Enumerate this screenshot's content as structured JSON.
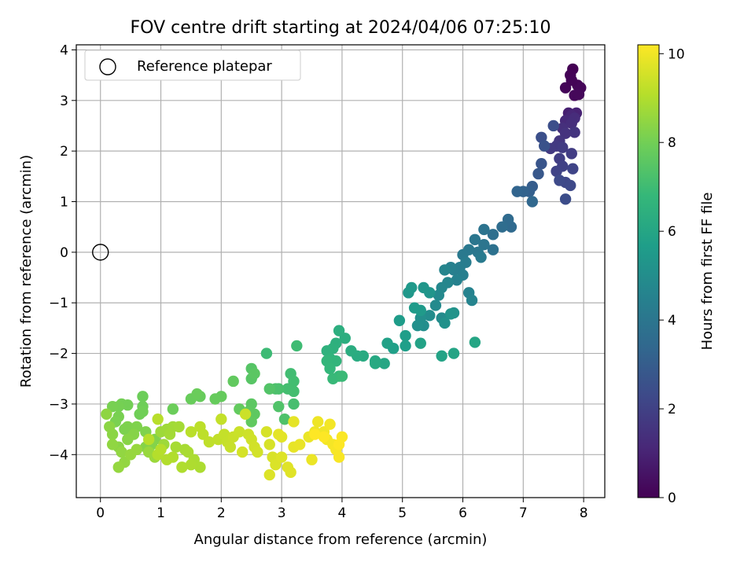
{
  "chart_data": {
    "type": "scatter",
    "title": "FOV centre drift starting at 2024/04/06 07:25:10",
    "xlabel": "Angular distance from reference (arcmin)",
    "ylabel": "Rotation from reference (arcmin)",
    "xlim": [
      -0.4,
      8.35
    ],
    "ylim": [
      -4.85,
      4.1
    ],
    "xticks": [
      0,
      1,
      2,
      3,
      4,
      5,
      6,
      7,
      8
    ],
    "yticks": [
      -4,
      -3,
      -2,
      -1,
      0,
      1,
      2,
      3,
      4
    ],
    "grid": true,
    "legend": {
      "position": "top-left",
      "entries": [
        "Reference platepar"
      ]
    },
    "reference_point": {
      "x": 0,
      "y": 0
    },
    "colorbar": {
      "label": "Hours from first FF file",
      "min": 0,
      "max": 10.2,
      "ticks": [
        0,
        2,
        4,
        6,
        8,
        10
      ],
      "colormap": "viridis"
    },
    "colormap_stops": [
      "#440154",
      "#482878",
      "#3e4989",
      "#31688e",
      "#26828e",
      "#1f9e89",
      "#35b779",
      "#6ece58",
      "#b5de2b",
      "#fde725"
    ],
    "marker_outline_color": "#000000",
    "points": [
      [
        7.82,
        3.62,
        0.0
      ],
      [
        7.78,
        3.5,
        0.05
      ],
      [
        7.9,
        3.3,
        0.1
      ],
      [
        7.7,
        3.25,
        0.12
      ],
      [
        7.95,
        3.25,
        0.15
      ],
      [
        7.85,
        3.1,
        0.18
      ],
      [
        7.92,
        3.12,
        0.2
      ],
      [
        7.8,
        3.4,
        0.08
      ],
      [
        7.75,
        2.75,
        0.9
      ],
      [
        7.88,
        2.75,
        1.0
      ],
      [
        7.8,
        2.7,
        1.1
      ],
      [
        7.7,
        2.6,
        1.2
      ],
      [
        7.85,
        2.65,
        1.3
      ],
      [
        7.8,
        2.55,
        1.35
      ],
      [
        7.65,
        2.45,
        1.4
      ],
      [
        7.7,
        2.35,
        1.5
      ],
      [
        7.85,
        2.37,
        1.55
      ],
      [
        7.6,
        2.2,
        1.6
      ],
      [
        7.55,
        2.1,
        1.7
      ],
      [
        7.45,
        2.05,
        1.75
      ],
      [
        7.65,
        2.07,
        1.8
      ],
      [
        7.8,
        1.95,
        1.85
      ],
      [
        7.6,
        1.85,
        1.9
      ],
      [
        7.65,
        1.7,
        2.0
      ],
      [
        7.55,
        1.6,
        2.05
      ],
      [
        7.82,
        1.65,
        2.1
      ],
      [
        7.7,
        1.38,
        2.2
      ],
      [
        7.78,
        1.32,
        2.25
      ],
      [
        7.6,
        1.42,
        2.3
      ],
      [
        7.7,
        1.05,
        2.4
      ],
      [
        7.5,
        2.5,
        2.45
      ],
      [
        7.3,
        2.27,
        2.5
      ],
      [
        7.35,
        2.1,
        2.6
      ],
      [
        7.3,
        1.75,
        2.7
      ],
      [
        7.25,
        1.55,
        2.8
      ],
      [
        7.15,
        1.3,
        3.0
      ],
      [
        7.1,
        1.2,
        3.1
      ],
      [
        7.0,
        1.2,
        3.2
      ],
      [
        6.9,
        1.2,
        3.3
      ],
      [
        7.15,
        1.0,
        3.4
      ],
      [
        6.8,
        0.5,
        3.5
      ],
      [
        6.75,
        0.65,
        3.55
      ],
      [
        6.65,
        0.5,
        3.6
      ],
      [
        6.5,
        0.35,
        3.7
      ],
      [
        6.5,
        0.05,
        3.8
      ],
      [
        6.35,
        0.45,
        3.9
      ],
      [
        6.35,
        0.15,
        3.95
      ],
      [
        6.2,
        0.25,
        4.0
      ],
      [
        6.25,
        0.0,
        4.05
      ],
      [
        6.1,
        0.05,
        4.1
      ],
      [
        6.0,
        -0.05,
        4.15
      ],
      [
        6.3,
        -0.1,
        4.2
      ],
      [
        6.05,
        -0.2,
        4.25
      ],
      [
        5.95,
        -0.3,
        4.3
      ],
      [
        5.85,
        -0.35,
        4.35
      ],
      [
        6.0,
        -0.45,
        4.4
      ],
      [
        5.8,
        -0.3,
        4.45
      ],
      [
        5.9,
        -0.55,
        4.5
      ],
      [
        6.1,
        -0.8,
        4.55
      ],
      [
        6.15,
        -0.95,
        4.6
      ],
      [
        5.7,
        -0.35,
        4.65
      ],
      [
        5.75,
        -0.6,
        4.7
      ],
      [
        5.65,
        -0.7,
        4.75
      ],
      [
        5.6,
        -0.85,
        4.8
      ],
      [
        5.55,
        -1.05,
        4.85
      ],
      [
        5.65,
        -1.3,
        4.9
      ],
      [
        5.45,
        -1.25,
        4.95
      ],
      [
        5.35,
        -1.45,
        5.0
      ],
      [
        5.3,
        -1.3,
        5.05
      ],
      [
        5.25,
        -1.45,
        5.1
      ],
      [
        5.7,
        -1.4,
        5.15
      ],
      [
        5.85,
        -1.2,
        5.2
      ],
      [
        5.8,
        -1.22,
        5.25
      ],
      [
        5.45,
        -0.8,
        5.3
      ],
      [
        5.35,
        -0.7,
        5.35
      ],
      [
        5.1,
        -0.8,
        5.4
      ],
      [
        5.15,
        -0.7,
        5.45
      ],
      [
        5.3,
        -1.15,
        5.5
      ],
      [
        5.2,
        -1.1,
        5.55
      ],
      [
        4.95,
        -1.35,
        5.6
      ],
      [
        5.05,
        -1.65,
        5.65
      ],
      [
        5.05,
        -1.85,
        5.7
      ],
      [
        4.85,
        -1.9,
        5.75
      ],
      [
        4.75,
        -1.8,
        5.8
      ],
      [
        5.3,
        -1.8,
        5.85
      ],
      [
        5.65,
        -2.05,
        5.9
      ],
      [
        5.85,
        -2.0,
        5.95
      ],
      [
        6.2,
        -1.78,
        6.0
      ],
      [
        4.7,
        -2.2,
        6.05
      ],
      [
        4.55,
        -2.15,
        6.1
      ],
      [
        4.55,
        -2.2,
        6.15
      ],
      [
        4.35,
        -2.05,
        6.2
      ],
      [
        4.25,
        -2.05,
        6.25
      ],
      [
        4.15,
        -1.95,
        6.3
      ],
      [
        4.05,
        -1.7,
        6.35
      ],
      [
        3.95,
        -1.55,
        6.4
      ],
      [
        3.9,
        -1.8,
        6.45
      ],
      [
        3.85,
        -1.9,
        6.5
      ],
      [
        3.75,
        -1.95,
        6.55
      ],
      [
        3.8,
        -2.1,
        6.6
      ],
      [
        3.9,
        -2.15,
        6.65
      ],
      [
        3.75,
        -2.15,
        6.7
      ],
      [
        3.8,
        -2.3,
        6.75
      ],
      [
        3.95,
        -2.45,
        6.8
      ],
      [
        3.85,
        -2.5,
        6.85
      ],
      [
        4.0,
        -2.45,
        6.9
      ],
      [
        2.75,
        -2.0,
        6.95
      ],
      [
        3.25,
        -1.85,
        7.0
      ],
      [
        3.15,
        -2.4,
        7.05
      ],
      [
        3.2,
        -2.55,
        7.08
      ],
      [
        3.2,
        -2.75,
        7.1
      ],
      [
        3.1,
        -2.7,
        7.12
      ],
      [
        3.2,
        -3.0,
        7.15
      ],
      [
        2.95,
        -2.7,
        7.2
      ],
      [
        2.9,
        -2.7,
        7.25
      ],
      [
        3.05,
        -3.3,
        7.3
      ],
      [
        2.95,
        -3.05,
        7.35
      ],
      [
        2.8,
        -2.7,
        7.4
      ],
      [
        2.5,
        -2.3,
        7.45
      ],
      [
        2.5,
        -2.5,
        7.5
      ],
      [
        2.55,
        -2.4,
        7.55
      ],
      [
        2.5,
        -3.0,
        7.6
      ],
      [
        2.55,
        -3.2,
        7.62
      ],
      [
        2.45,
        -3.15,
        7.65
      ],
      [
        2.5,
        -3.35,
        7.68
      ],
      [
        2.2,
        -2.55,
        7.7
      ],
      [
        2.3,
        -3.1,
        7.72
      ],
      [
        2.0,
        -2.85,
        7.75
      ],
      [
        1.9,
        -2.9,
        7.78
      ],
      [
        1.65,
        -2.85,
        7.8
      ],
      [
        1.5,
        -2.9,
        7.82
      ],
      [
        1.6,
        -2.8,
        7.85
      ],
      [
        1.2,
        -3.1,
        7.88
      ],
      [
        0.7,
        -2.85,
        7.9
      ],
      [
        0.7,
        -3.05,
        7.92
      ],
      [
        0.65,
        -3.2,
        7.95
      ],
      [
        0.7,
        -3.15,
        7.97
      ],
      [
        0.45,
        -3.02,
        8.0
      ],
      [
        0.35,
        -3.0,
        8.02
      ],
      [
        0.3,
        -3.05,
        8.05
      ],
      [
        0.2,
        -3.05,
        8.08
      ],
      [
        0.3,
        -3.25,
        8.1
      ],
      [
        0.25,
        -3.35,
        8.12
      ],
      [
        0.4,
        -3.5,
        8.15
      ],
      [
        0.45,
        -3.45,
        8.18
      ],
      [
        0.6,
        -3.45,
        8.2
      ],
      [
        0.75,
        -3.55,
        8.22
      ],
      [
        0.9,
        -3.7,
        8.25
      ],
      [
        0.85,
        -3.8,
        8.28
      ],
      [
        0.75,
        -3.85,
        8.3
      ],
      [
        0.55,
        -3.6,
        8.32
      ],
      [
        0.45,
        -3.7,
        8.35
      ],
      [
        0.3,
        -3.85,
        8.38
      ],
      [
        0.2,
        -3.6,
        8.4
      ],
      [
        0.15,
        -3.45,
        8.42
      ],
      [
        0.1,
        -3.2,
        8.45
      ],
      [
        0.2,
        -3.8,
        8.48
      ],
      [
        0.35,
        -3.95,
        8.5
      ],
      [
        0.4,
        -4.15,
        8.52
      ],
      [
        0.3,
        -4.25,
        8.55
      ],
      [
        0.5,
        -4.0,
        8.58
      ],
      [
        0.6,
        -3.9,
        8.6
      ],
      [
        0.8,
        -3.95,
        8.62
      ],
      [
        0.9,
        -4.05,
        8.65
      ],
      [
        1.0,
        -3.55,
        8.68
      ],
      [
        1.05,
        -3.8,
        8.7
      ],
      [
        1.1,
        -3.5,
        8.72
      ],
      [
        1.2,
        -3.45,
        8.75
      ],
      [
        1.15,
        -3.6,
        8.78
      ],
      [
        1.3,
        -3.45,
        8.8
      ],
      [
        1.25,
        -3.85,
        8.82
      ],
      [
        1.4,
        -3.9,
        8.85
      ],
      [
        1.45,
        -3.95,
        8.88
      ],
      [
        1.55,
        -4.1,
        8.9
      ],
      [
        1.65,
        -4.25,
        8.92
      ],
      [
        1.5,
        -4.2,
        8.95
      ],
      [
        1.35,
        -4.25,
        8.97
      ],
      [
        1.2,
        -4.05,
        9.0
      ],
      [
        1.1,
        -4.1,
        9.02
      ],
      [
        0.95,
        -4.0,
        9.05
      ],
      [
        1.0,
        -3.9,
        9.08
      ],
      [
        0.8,
        -3.7,
        9.1
      ],
      [
        0.95,
        -3.3,
        9.12
      ],
      [
        1.5,
        -3.55,
        9.15
      ],
      [
        1.65,
        -3.45,
        9.18
      ],
      [
        1.7,
        -3.6,
        9.2
      ],
      [
        1.8,
        -3.75,
        9.22
      ],
      [
        1.95,
        -3.7,
        9.25
      ],
      [
        2.0,
        -3.3,
        9.28
      ],
      [
        2.05,
        -3.6,
        9.3
      ],
      [
        2.1,
        -3.75,
        9.32
      ],
      [
        2.15,
        -3.85,
        9.35
      ],
      [
        2.2,
        -3.65,
        9.38
      ],
      [
        2.3,
        -3.55,
        9.4
      ],
      [
        2.4,
        -3.2,
        9.42
      ],
      [
        2.45,
        -3.6,
        9.45
      ],
      [
        2.5,
        -3.7,
        9.48
      ],
      [
        2.55,
        -3.85,
        9.5
      ],
      [
        2.6,
        -3.95,
        9.52
      ],
      [
        2.35,
        -3.95,
        9.55
      ],
      [
        2.75,
        -3.55,
        9.58
      ],
      [
        2.8,
        -3.8,
        9.6
      ],
      [
        2.85,
        -4.05,
        9.62
      ],
      [
        2.9,
        -4.2,
        9.65
      ],
      [
        2.8,
        -4.4,
        9.68
      ],
      [
        3.0,
        -4.05,
        9.7
      ],
      [
        3.1,
        -4.25,
        9.72
      ],
      [
        3.15,
        -4.35,
        9.75
      ],
      [
        3.0,
        -3.65,
        9.78
      ],
      [
        2.95,
        -3.6,
        9.8
      ],
      [
        3.2,
        -3.35,
        9.82
      ],
      [
        3.2,
        -3.85,
        9.85
      ],
      [
        3.3,
        -3.8,
        9.88
      ],
      [
        3.45,
        -3.65,
        9.9
      ],
      [
        3.5,
        -4.1,
        9.92
      ],
      [
        3.55,
        -3.55,
        9.95
      ],
      [
        3.6,
        -3.35,
        9.97
      ],
      [
        3.7,
        -3.55,
        10.0
      ],
      [
        3.75,
        -3.7,
        10.02
      ],
      [
        3.8,
        -3.4,
        10.05
      ],
      [
        3.85,
        -3.8,
        10.08
      ],
      [
        3.9,
        -3.9,
        10.1
      ],
      [
        3.95,
        -4.05,
        10.12
      ],
      [
        4.0,
        -3.65,
        10.15
      ],
      [
        3.7,
        -3.65,
        10.18
      ],
      [
        3.55,
        -3.6,
        10.2
      ],
      [
        3.95,
        -3.8,
        10.2
      ]
    ]
  }
}
